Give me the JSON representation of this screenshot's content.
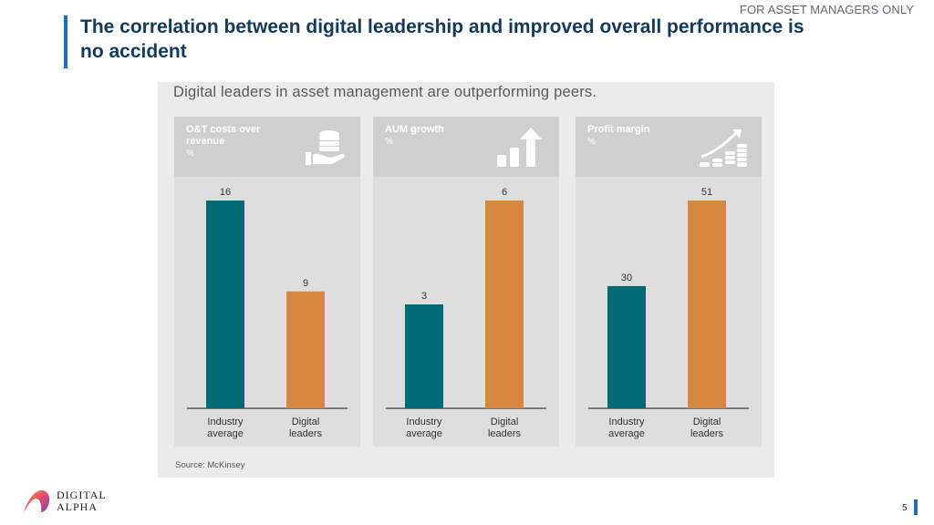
{
  "header": {
    "tag": "FOR ASSET MANAGERS ONLY",
    "title": "The correlation between digital leadership and improved overall performance is no accident"
  },
  "figure": {
    "title": "Digital leaders in asset management are outperforming peers.",
    "source": "Source: McKinsey"
  },
  "colors": {
    "industry_average": "#006a77",
    "digital_leaders": "#d98640",
    "panel_header": "#cfcfcf",
    "panel_body": "#dedede",
    "title": "#123a5c",
    "accent": "#1f6fb0"
  },
  "chart_data": [
    {
      "type": "bar",
      "title": "O&T costs over revenue",
      "unit": "%",
      "icon": "coins-hand-icon",
      "categories": [
        "Industry average",
        "Digital leaders"
      ],
      "values": [
        16,
        9
      ],
      "ylim": [
        0,
        16
      ]
    },
    {
      "type": "bar",
      "title": "AUM growth",
      "unit": "%",
      "icon": "growth-arrow-icon",
      "categories": [
        "Industry average",
        "Digital leaders"
      ],
      "values": [
        3,
        6
      ],
      "ylim": [
        0,
        6
      ]
    },
    {
      "type": "bar",
      "title": "Profit margin",
      "unit": "%",
      "icon": "rising-coins-icon",
      "categories": [
        "Industry average",
        "Digital leaders"
      ],
      "values": [
        30,
        51
      ],
      "ylim": [
        0,
        51
      ]
    }
  ],
  "footer": {
    "logo_line1": "DIGITAL",
    "logo_line2": "ALPHA",
    "page_number": "5"
  }
}
